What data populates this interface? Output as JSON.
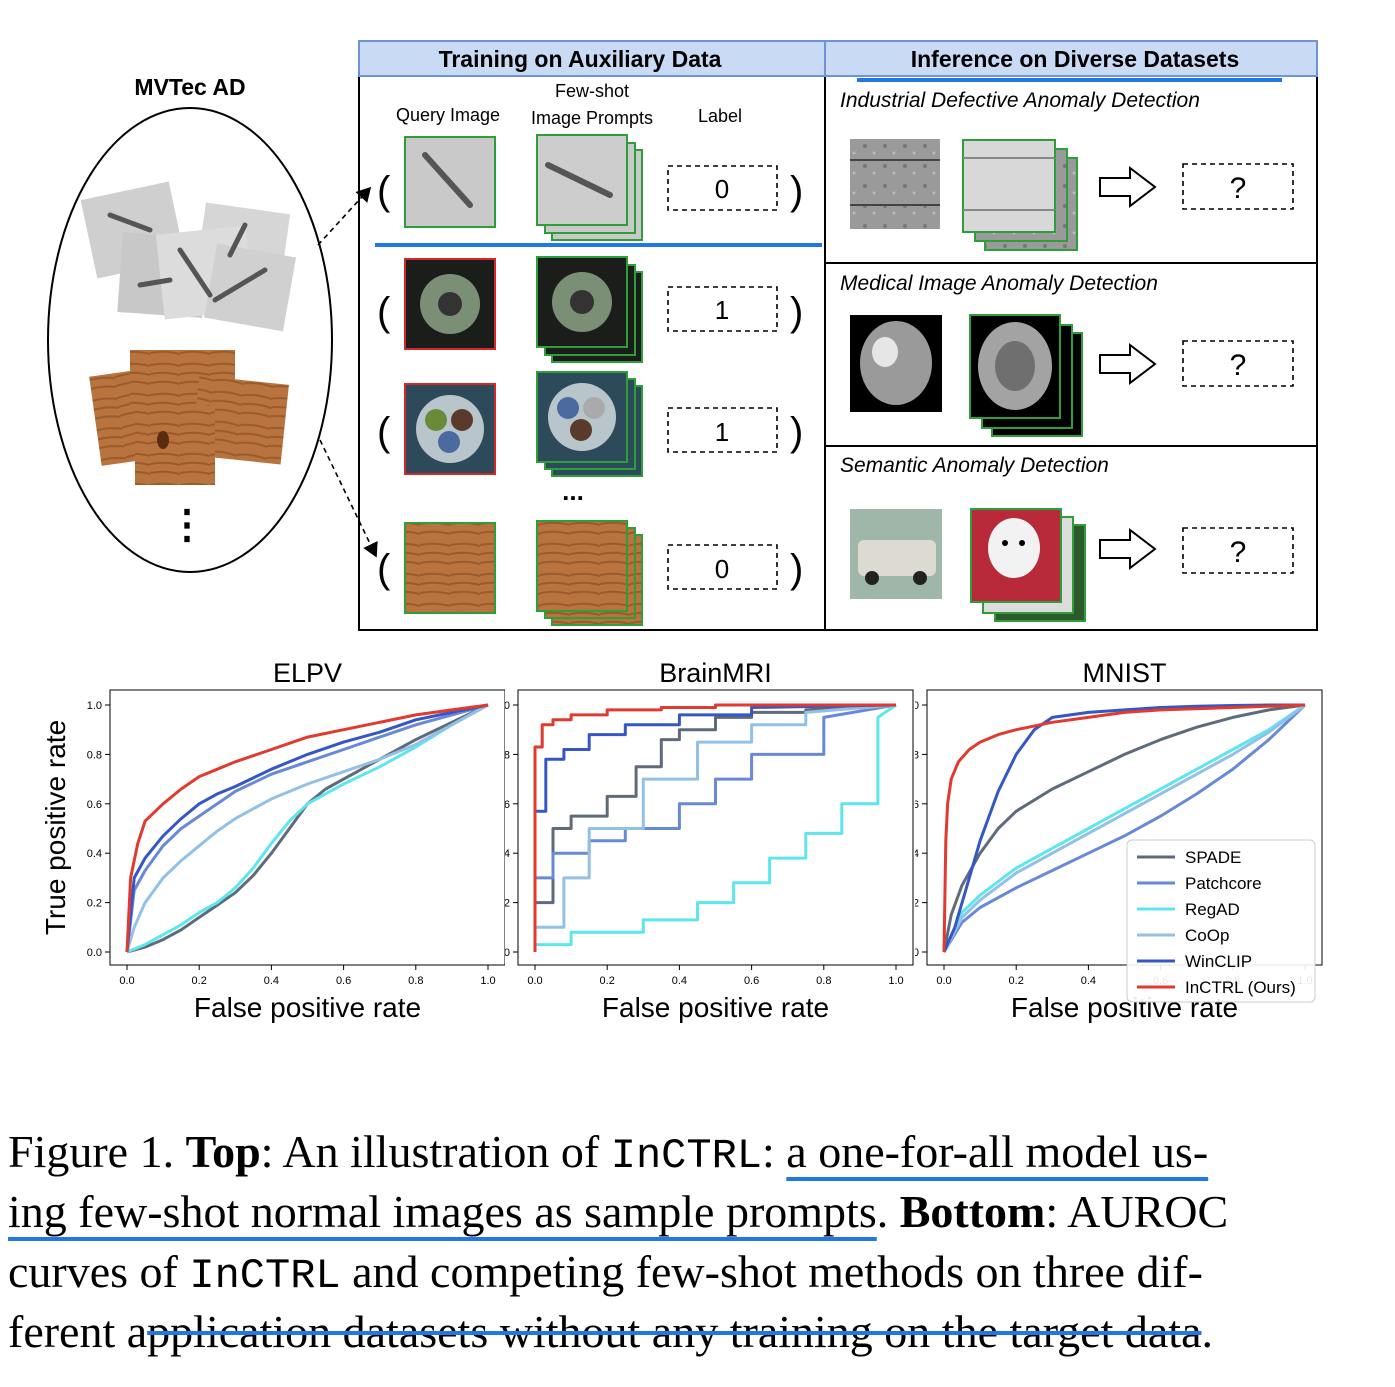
{
  "diagram": {
    "left_title": "MVTec AD",
    "left_ellipsis": "⋮",
    "training_header": "Training on Auxiliary Data",
    "inference_header": "Inference on Diverse Datasets",
    "col_query": "Query Image",
    "col_prompts_1": "Few-shot",
    "col_prompts_2": "Image Prompts",
    "col_label": "Label",
    "training_rows": [
      {
        "label": "0",
        "query_border": "#2e9e3a"
      },
      {
        "label": "1",
        "query_border": "#d62728"
      },
      {
        "label": "1",
        "query_border": "#d62728"
      },
      {
        "label": "0",
        "query_border": "#2e9e3a"
      }
    ],
    "row_ellipsis": "...",
    "inference_panels": [
      {
        "title": "Industrial Defective Anomaly Detection",
        "answer": "?"
      },
      {
        "title": "Medical Image Anomaly Detection",
        "answer": "?"
      },
      {
        "title": "Semantic Anomaly Detection",
        "answer": "?"
      }
    ],
    "colors": {
      "header_fill": "#c9daf5",
      "header_border": "#6e94d6",
      "highlight": "#1f78e6",
      "normal": "#2e9e3a",
      "anomaly": "#d62728"
    }
  },
  "chart_data": [
    {
      "type": "line",
      "title": "ELPV",
      "xlabel": "False positive rate",
      "ylabel": "True positive rate",
      "xlim": [
        0,
        1
      ],
      "ylim": [
        0,
        1
      ],
      "ticks": [
        "0.0",
        "0.2",
        "0.4",
        "0.6",
        "0.8",
        "1.0"
      ],
      "series": [
        {
          "name": "SPADE",
          "color": "#5f6b7a",
          "x": [
            0,
            0.05,
            0.1,
            0.15,
            0.2,
            0.25,
            0.3,
            0.35,
            0.4,
            0.45,
            0.5,
            0.55,
            0.6,
            0.7,
            0.8,
            0.9,
            1.0
          ],
          "y": [
            0,
            0.02,
            0.05,
            0.09,
            0.14,
            0.19,
            0.24,
            0.31,
            0.4,
            0.5,
            0.6,
            0.66,
            0.7,
            0.78,
            0.86,
            0.93,
            1.0
          ]
        },
        {
          "name": "Patchcore",
          "color": "#6789d8",
          "x": [
            0,
            0.02,
            0.05,
            0.1,
            0.15,
            0.2,
            0.25,
            0.3,
            0.4,
            0.5,
            0.6,
            0.7,
            0.8,
            0.9,
            1.0
          ],
          "y": [
            0,
            0.25,
            0.33,
            0.43,
            0.5,
            0.55,
            0.6,
            0.65,
            0.72,
            0.77,
            0.82,
            0.87,
            0.92,
            0.96,
            1.0
          ]
        },
        {
          "name": "RegAD",
          "color": "#5ee6f0",
          "x": [
            0,
            0.05,
            0.1,
            0.15,
            0.2,
            0.25,
            0.3,
            0.35,
            0.4,
            0.45,
            0.5,
            0.6,
            0.7,
            0.8,
            0.9,
            1.0
          ],
          "y": [
            0,
            0.03,
            0.07,
            0.11,
            0.16,
            0.2,
            0.26,
            0.34,
            0.44,
            0.53,
            0.6,
            0.68,
            0.75,
            0.83,
            0.92,
            1.0
          ]
        },
        {
          "name": "CoOp",
          "color": "#93c1e6",
          "x": [
            0,
            0.02,
            0.05,
            0.1,
            0.15,
            0.2,
            0.25,
            0.3,
            0.4,
            0.5,
            0.6,
            0.7,
            0.8,
            0.9,
            1.0
          ],
          "y": [
            0,
            0.1,
            0.2,
            0.3,
            0.37,
            0.43,
            0.49,
            0.54,
            0.62,
            0.68,
            0.73,
            0.78,
            0.84,
            0.92,
            1.0
          ]
        },
        {
          "name": "WinCLIP",
          "color": "#3557c6",
          "x": [
            0,
            0.02,
            0.05,
            0.1,
            0.15,
            0.2,
            0.25,
            0.3,
            0.4,
            0.5,
            0.6,
            0.7,
            0.8,
            0.9,
            1.0
          ],
          "y": [
            0,
            0.3,
            0.38,
            0.47,
            0.54,
            0.6,
            0.64,
            0.67,
            0.74,
            0.8,
            0.85,
            0.89,
            0.94,
            0.97,
            1.0
          ]
        },
        {
          "name": "InCTRL (Ours)",
          "color": "#e23a2e",
          "x": [
            0,
            0.01,
            0.03,
            0.05,
            0.1,
            0.15,
            0.2,
            0.25,
            0.3,
            0.4,
            0.5,
            0.6,
            0.7,
            0.8,
            0.9,
            1.0
          ],
          "y": [
            0,
            0.3,
            0.44,
            0.53,
            0.6,
            0.66,
            0.71,
            0.74,
            0.77,
            0.82,
            0.87,
            0.9,
            0.93,
            0.96,
            0.98,
            1.0
          ]
        }
      ]
    },
    {
      "type": "line",
      "title": "BrainMRI",
      "xlabel": "False positive rate",
      "ylabel": "",
      "xlim": [
        0,
        1
      ],
      "ylim": [
        0,
        1
      ],
      "ticks": [
        "0.0",
        "0.2",
        "0.4",
        "0.6",
        "0.8",
        "1.0"
      ],
      "series": [
        {
          "name": "SPADE",
          "color": "#5f6b7a",
          "x": [
            0,
            0,
            0.05,
            0.05,
            0.1,
            0.1,
            0.2,
            0.2,
            0.28,
            0.28,
            0.35,
            0.35,
            0.4,
            0.4,
            0.5,
            0.5,
            0.6,
            0.6,
            0.75,
            0.75,
            1.0
          ],
          "y": [
            0,
            0.2,
            0.2,
            0.5,
            0.5,
            0.55,
            0.55,
            0.63,
            0.63,
            0.75,
            0.75,
            0.86,
            0.86,
            0.9,
            0.9,
            0.95,
            0.95,
            0.97,
            0.97,
            0.98,
            1.0
          ]
        },
        {
          "name": "Patchcore",
          "color": "#6789d8",
          "x": [
            0,
            0,
            0.05,
            0.05,
            0.15,
            0.15,
            0.25,
            0.25,
            0.4,
            0.4,
            0.5,
            0.5,
            0.6,
            0.6,
            0.8,
            0.8,
            1.0
          ],
          "y": [
            0,
            0.3,
            0.3,
            0.4,
            0.4,
            0.45,
            0.45,
            0.5,
            0.5,
            0.6,
            0.6,
            0.7,
            0.7,
            0.8,
            0.8,
            0.95,
            1.0
          ]
        },
        {
          "name": "RegAD",
          "color": "#5ee6f0",
          "x": [
            0,
            0.1,
            0.1,
            0.3,
            0.3,
            0.45,
            0.45,
            0.55,
            0.55,
            0.65,
            0.65,
            0.75,
            0.75,
            0.85,
            0.85,
            0.95,
            0.95,
            1.0
          ],
          "y": [
            0.03,
            0.03,
            0.08,
            0.08,
            0.13,
            0.13,
            0.2,
            0.2,
            0.28,
            0.28,
            0.38,
            0.38,
            0.48,
            0.48,
            0.6,
            0.6,
            0.95,
            1.0
          ]
        },
        {
          "name": "CoOp",
          "color": "#93c1e6",
          "x": [
            0,
            0,
            0.08,
            0.08,
            0.15,
            0.15,
            0.3,
            0.3,
            0.45,
            0.45,
            0.6,
            0.6,
            0.75,
            0.75,
            1.0
          ],
          "y": [
            0,
            0.1,
            0.1,
            0.3,
            0.3,
            0.5,
            0.5,
            0.7,
            0.7,
            0.85,
            0.85,
            0.92,
            0.92,
            0.97,
            1.0
          ]
        },
        {
          "name": "WinCLIP",
          "color": "#3557c6",
          "x": [
            0,
            0,
            0.03,
            0.03,
            0.08,
            0.08,
            0.15,
            0.15,
            0.25,
            0.25,
            0.4,
            0.4,
            0.6,
            0.6,
            1.0
          ],
          "y": [
            0,
            0.57,
            0.57,
            0.78,
            0.78,
            0.82,
            0.82,
            0.88,
            0.88,
            0.92,
            0.92,
            0.96,
            0.96,
            0.99,
            1.0
          ]
        },
        {
          "name": "InCTRL (Ours)",
          "color": "#e23a2e",
          "x": [
            0,
            0,
            0.02,
            0.02,
            0.05,
            0.05,
            0.1,
            0.1,
            0.2,
            0.2,
            0.35,
            0.35,
            0.5,
            0.5,
            1.0
          ],
          "y": [
            0,
            0.83,
            0.83,
            0.92,
            0.92,
            0.94,
            0.94,
            0.96,
            0.96,
            0.98,
            0.98,
            0.99,
            0.99,
            1.0,
            1.0
          ]
        }
      ]
    },
    {
      "type": "line",
      "title": "MNIST",
      "xlabel": "False positive rate",
      "ylabel": "",
      "xlim": [
        0,
        1
      ],
      "ylim": [
        0,
        1
      ],
      "ticks": [
        "0.0",
        "0.2",
        "0.4",
        "0.6",
        "0.8",
        "1.0"
      ],
      "legend_position": "lower-right",
      "series": [
        {
          "name": "SPADE",
          "color": "#5f6b7a",
          "x": [
            0,
            0.02,
            0.05,
            0.1,
            0.15,
            0.2,
            0.3,
            0.4,
            0.5,
            0.6,
            0.7,
            0.8,
            0.9,
            1.0
          ],
          "y": [
            0,
            0.15,
            0.27,
            0.4,
            0.5,
            0.57,
            0.66,
            0.73,
            0.8,
            0.86,
            0.91,
            0.95,
            0.98,
            1.0
          ]
        },
        {
          "name": "Patchcore",
          "color": "#6789d8",
          "x": [
            0,
            0.05,
            0.1,
            0.2,
            0.3,
            0.4,
            0.5,
            0.6,
            0.7,
            0.8,
            0.9,
            1.0
          ],
          "y": [
            0,
            0.12,
            0.18,
            0.26,
            0.33,
            0.4,
            0.47,
            0.55,
            0.64,
            0.74,
            0.86,
            1.0
          ]
        },
        {
          "name": "RegAD",
          "color": "#5ee6f0",
          "x": [
            0,
            0.05,
            0.1,
            0.2,
            0.3,
            0.4,
            0.5,
            0.6,
            0.7,
            0.8,
            0.9,
            1.0
          ],
          "y": [
            0,
            0.16,
            0.23,
            0.34,
            0.42,
            0.5,
            0.58,
            0.66,
            0.74,
            0.82,
            0.9,
            1.0
          ]
        },
        {
          "name": "CoOp",
          "color": "#93c1e6",
          "x": [
            0,
            0.05,
            0.1,
            0.2,
            0.3,
            0.4,
            0.5,
            0.6,
            0.7,
            0.8,
            0.9,
            1.0
          ],
          "y": [
            0,
            0.14,
            0.21,
            0.32,
            0.4,
            0.48,
            0.56,
            0.64,
            0.72,
            0.8,
            0.89,
            1.0
          ]
        },
        {
          "name": "WinCLIP",
          "color": "#3557c6",
          "x": [
            0,
            0.03,
            0.06,
            0.1,
            0.15,
            0.2,
            0.25,
            0.3,
            0.4,
            0.5,
            0.6,
            0.7,
            0.8,
            0.9,
            1.0
          ],
          "y": [
            0,
            0.1,
            0.25,
            0.45,
            0.65,
            0.8,
            0.9,
            0.95,
            0.97,
            0.98,
            0.99,
            0.995,
            0.998,
            1.0,
            1.0
          ]
        },
        {
          "name": "InCTRL (Ours)",
          "color": "#e23a2e",
          "x": [
            0,
            0.005,
            0.01,
            0.02,
            0.04,
            0.07,
            0.1,
            0.15,
            0.2,
            0.3,
            0.4,
            0.5,
            0.6,
            0.8,
            1.0
          ],
          "y": [
            0,
            0.45,
            0.6,
            0.7,
            0.77,
            0.82,
            0.85,
            0.88,
            0.9,
            0.93,
            0.95,
            0.97,
            0.98,
            0.99,
            1.0
          ]
        }
      ]
    }
  ],
  "caption": {
    "l1_a": "Figure 1. ",
    "l1_b": "Top",
    "l1_c": ": An illustration of ",
    "l1_d": "InCTRL",
    "l1_e": ": ",
    "l1_f": "a one-for-all model us-",
    "l2_a": "ing few-shot normal images as sample prompts",
    "l2_b": ". ",
    "l2_c": "Bottom",
    "l2_d": ": AUROC",
    "l3_a": "curves of ",
    "l3_b": "InCTRL",
    "l3_c": " and competing few-shot methods on three dif-",
    "l4_a": "ferent a",
    "l4_b": "pplication datasets without any training on the target data",
    "l4_c": "."
  }
}
